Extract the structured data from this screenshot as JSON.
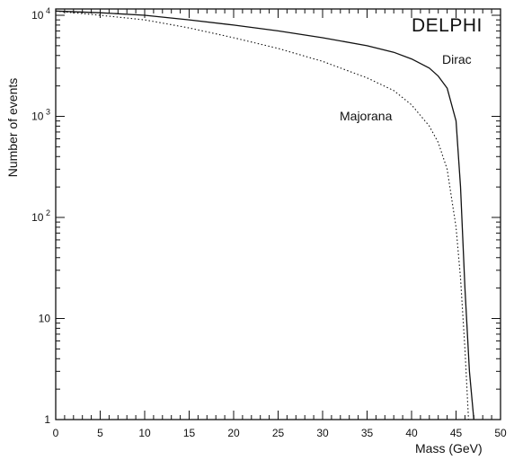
{
  "chart_data": {
    "type": "line",
    "title": "",
    "experiment_label": "DELPHI",
    "xlabel": "Mass (GeV)",
    "ylabel": "Number of events",
    "xlim": [
      0,
      50
    ],
    "ylim": [
      1,
      10000
    ],
    "yscale": "log",
    "grid": false,
    "x_ticks": [
      0,
      5,
      10,
      15,
      20,
      25,
      30,
      35,
      40,
      45,
      50
    ],
    "y_ticks": [
      {
        "value": 1,
        "base": "1",
        "exp": ""
      },
      {
        "value": 10,
        "base": "10",
        "exp": ""
      },
      {
        "value": 100,
        "base": "10",
        "exp": "2"
      },
      {
        "value": 1000,
        "base": "10",
        "exp": "3"
      },
      {
        "value": 10000,
        "base": "10",
        "exp": "4"
      }
    ],
    "series": [
      {
        "name": "Dirac",
        "style": "solid",
        "color": "#111111",
        "x": [
          0,
          5,
          10,
          15,
          20,
          25,
          30,
          35,
          38,
          40,
          42,
          43,
          44,
          45,
          45.5,
          46,
          46.5,
          47
        ],
        "y": [
          11000,
          10600,
          10000,
          9000,
          8000,
          7000,
          6000,
          5000,
          4300,
          3700,
          3000,
          2500,
          1900,
          900,
          200,
          20,
          3,
          1
        ]
      },
      {
        "name": "Majorana",
        "style": "dotted",
        "color": "#111111",
        "x": [
          0,
          5,
          10,
          15,
          20,
          25,
          30,
          35,
          38,
          40,
          42,
          43,
          44,
          45,
          45.5,
          46,
          46.4
        ],
        "y": [
          11000,
          10000,
          9000,
          7500,
          6000,
          4700,
          3500,
          2400,
          1800,
          1300,
          800,
          550,
          300,
          80,
          25,
          5,
          1
        ]
      }
    ]
  }
}
